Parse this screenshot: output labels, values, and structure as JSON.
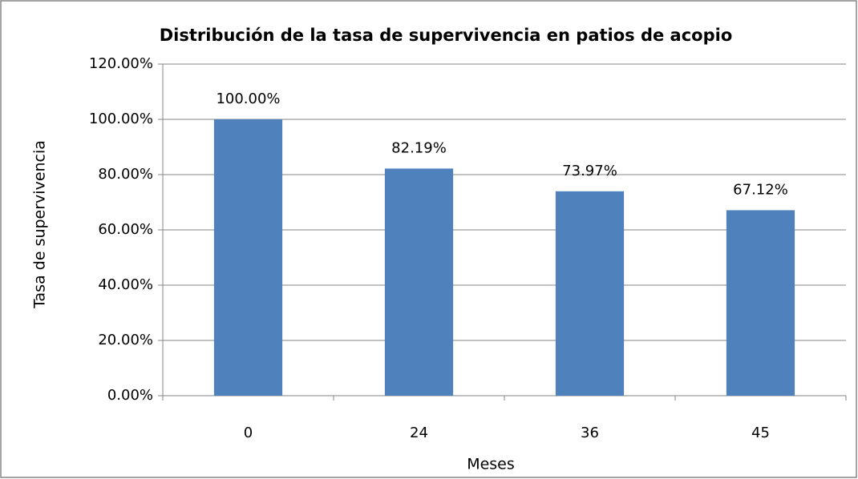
{
  "chart_data": {
    "type": "bar",
    "title": "Distribución de la tasa de supervivencia en patios de acopio",
    "x_label": "Meses",
    "y_label": "Tasa de supervivencia",
    "categories": [
      "0",
      "24",
      "36",
      "45"
    ],
    "values": [
      100,
      82.19,
      73.97,
      67.12
    ],
    "value_labels": [
      "100.00%",
      "82.19%",
      "73.97%",
      "67.12%"
    ],
    "color": "#4f81bd",
    "ylim": [
      0,
      120
    ],
    "yticks": [
      {
        "value": 0,
        "label": "0.00%"
      },
      {
        "value": 20,
        "label": "20.00%"
      },
      {
        "value": 40,
        "label": "40.00%"
      },
      {
        "value": 60,
        "label": "60.00%"
      },
      {
        "value": 80,
        "label": "80.00%"
      },
      {
        "value": 100,
        "label": "100.00%"
      },
      {
        "value": 120,
        "label": "120.00%"
      }
    ],
    "grid": true
  }
}
